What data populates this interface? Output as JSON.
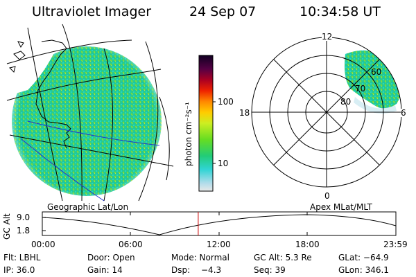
{
  "header": {
    "instrument": "Ultraviolet Imager",
    "date": "24 Sep 07",
    "time": "10:34:58 UT"
  },
  "panels": {
    "left_label": "Geographic Lat/Lon",
    "right_label": "Apex MLat/MLT"
  },
  "colorbar": {
    "ticks": [
      "100",
      "10"
    ],
    "unit": "photon cm⁻²s⁻¹"
  },
  "polar_plot": {
    "mlt_labels": {
      "top": "12",
      "left": "18",
      "right": "6",
      "bottom": "0"
    },
    "lat_labels": [
      "60",
      "70",
      "80"
    ]
  },
  "altitude_plot": {
    "ylabel": "GC Alt",
    "yticks": [
      "9.0",
      "1.8"
    ],
    "xticks": [
      "00:00",
      "06:00",
      "12:00",
      "18:00",
      "23:59"
    ],
    "x_range_hours": [
      0,
      24
    ],
    "y_range_re": [
      1.0,
      9.8
    ],
    "current_time_hours": 10.583,
    "colors": {
      "curve": "#000000",
      "marker": "#cc0000"
    }
  },
  "status": {
    "filter": "Flt: LBHL",
    "door": "Door: Open",
    "mode": "Mode: Normal",
    "gc_alt": "GC Alt: 5.3 Re",
    "glat": "GLat: −64.9",
    "ip": "IP: 36.0",
    "gain": "Gain: 14",
    "dsp_label": "Dsp:",
    "dsp_value": "−4.3",
    "seq": "Seq: 39",
    "glon": "GLon: 346.1"
  }
}
